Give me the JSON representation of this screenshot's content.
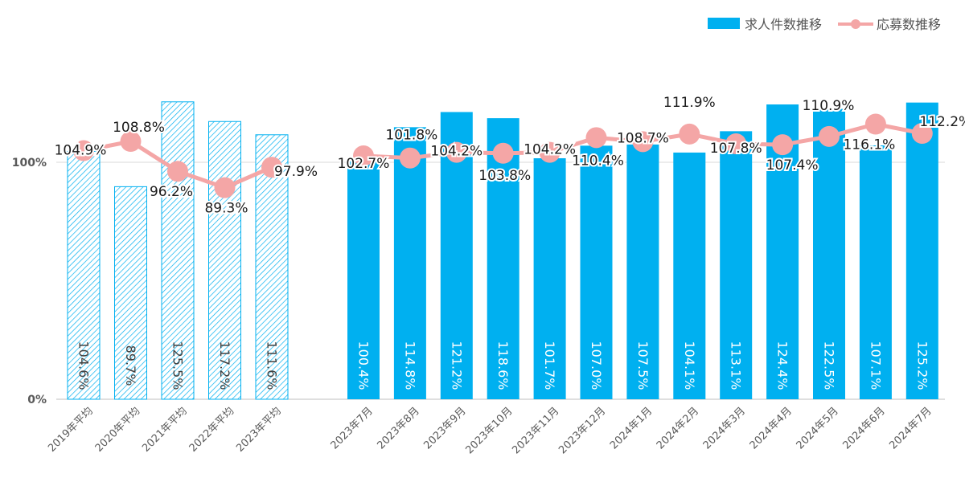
{
  "chart_data": {
    "type": "bar",
    "categories": [
      "2019年平均",
      "2020年平均",
      "2021年平均",
      "2022年平均",
      "2023年平均",
      "2023年7月",
      "2023年8月",
      "2023年9月",
      "2023年10月",
      "2023年11月",
      "2023年12月",
      "2024年1月",
      "2024年2月",
      "2024年3月",
      "2024年4月",
      "2024年5月",
      "2024年6月",
      "2024年7月"
    ],
    "series": [
      {
        "name": "求人件数推移",
        "type": "bar",
        "color": "#00b0f0",
        "values": [
          104.6,
          89.7,
          125.5,
          117.2,
          111.6,
          100.4,
          114.8,
          121.2,
          118.6,
          101.7,
          107.0,
          107.5,
          104.1,
          113.1,
          124.4,
          122.5,
          107.1,
          125.2
        ],
        "labels": [
          "104.6%",
          "89.7%",
          "125.5%",
          "117.2%",
          "111.6%",
          "100.4%",
          "114.8%",
          "121.2%",
          "118.6%",
          "101.7%",
          "107.0%",
          "107.5%",
          "104.1%",
          "113.1%",
          "124.4%",
          "122.5%",
          "107.1%",
          "125.2%"
        ]
      },
      {
        "name": "応募数推移",
        "type": "line",
        "color": "#f4a6a6",
        "values": [
          104.9,
          108.8,
          96.2,
          89.3,
          97.9,
          102.7,
          101.8,
          104.2,
          103.8,
          104.2,
          110.4,
          108.7,
          111.9,
          107.8,
          107.4,
          110.9,
          116.1,
          112.2
        ],
        "labels": [
          "104.9%",
          "108.8%",
          "96.2%",
          "89.3%",
          "97.9%",
          "102.7%",
          "101.8%",
          "104.2%",
          "103.8%",
          "104.2%",
          "110.4%",
          "108.7%",
          "111.9%",
          "107.8%",
          "107.4%",
          "110.9%",
          "116.1%",
          "112.2%"
        ]
      }
    ],
    "yticks": [
      {
        "value": 0,
        "label": "0%"
      },
      {
        "value": 100,
        "label": "100%"
      }
    ],
    "ylim": [
      0,
      145
    ],
    "grid": "horizontal at 100%",
    "legend_position": "top-right",
    "hatched_categories": [
      "2019年平均",
      "2020年平均",
      "2021年平均",
      "2022年平均",
      "2023年平均"
    ]
  }
}
